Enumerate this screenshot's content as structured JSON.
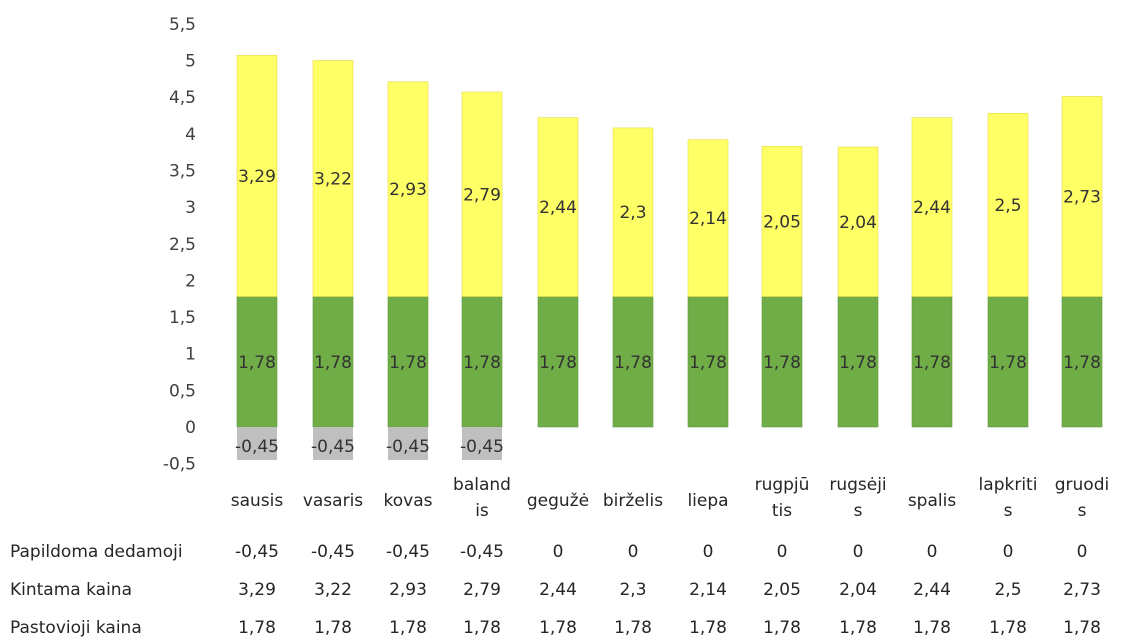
{
  "chart_data": {
    "type": "bar",
    "stacked": true,
    "categories": [
      [
        "sausis"
      ],
      [
        "vasaris"
      ],
      [
        "kovas"
      ],
      [
        "baland",
        "is"
      ],
      [
        "gegužė"
      ],
      [
        "birželis"
      ],
      [
        "liepa"
      ],
      [
        "rugpjū",
        "tis"
      ],
      [
        "rugsėji",
        "s"
      ],
      [
        "spalis"
      ],
      [
        "lapkriti",
        "s"
      ],
      [
        "gruodi",
        "s"
      ]
    ],
    "series": [
      {
        "name": "Pastovioji kaina",
        "color": "#70ad47",
        "values": [
          1.78,
          1.78,
          1.78,
          1.78,
          1.78,
          1.78,
          1.78,
          1.78,
          1.78,
          1.78,
          1.78,
          1.78
        ],
        "labels": [
          "1,78",
          "1,78",
          "1,78",
          "1,78",
          "1,78",
          "1,78",
          "1,78",
          "1,78",
          "1,78",
          "1,78",
          "1,78",
          "1,78"
        ]
      },
      {
        "name": "Kintama kaina",
        "color": "#ffff66",
        "values": [
          3.29,
          3.22,
          2.93,
          2.79,
          2.44,
          2.3,
          2.14,
          2.05,
          2.04,
          2.44,
          2.5,
          2.73
        ],
        "labels": [
          "3,29",
          "3,22",
          "2,93",
          "2,79",
          "2,44",
          "2,3",
          "2,14",
          "2,05",
          "2,04",
          "2,44",
          "2,5",
          "2,73"
        ]
      },
      {
        "name": "Papildoma dedamoji",
        "color": "#bfbfbf",
        "values": [
          -0.45,
          -0.45,
          -0.45,
          -0.45,
          0,
          0,
          0,
          0,
          0,
          0,
          0,
          0
        ],
        "labels": [
          "-0,45",
          "-0,45",
          "-0,45",
          "-0,45",
          "0",
          "0",
          "0",
          "0",
          "0",
          "0",
          "0",
          "0"
        ]
      }
    ],
    "y_ticks": [
      "-0,5",
      "0",
      "0,5",
      "1",
      "1,5",
      "2",
      "2,5",
      "3",
      "3,5",
      "4",
      "4,5",
      "5",
      "5,5"
    ],
    "ylim": [
      -0.5,
      5.5
    ],
    "grid": false,
    "data_table": {
      "rows": [
        {
          "name": "Papildoma dedamoji",
          "cells": [
            "-0,45",
            "-0,45",
            "-0,45",
            "-0,45",
            "0",
            "0",
            "0",
            "0",
            "0",
            "0",
            "0",
            "0"
          ]
        },
        {
          "name": "Kintama kaina",
          "cells": [
            "3,29",
            "3,22",
            "2,93",
            "2,79",
            "2,44",
            "2,3",
            "2,14",
            "2,05",
            "2,04",
            "2,44",
            "2,5",
            "2,73"
          ]
        },
        {
          "name": "Pastovioji kaina",
          "cells": [
            "1,78",
            "1,78",
            "1,78",
            "1,78",
            "1,78",
            "1,78",
            "1,78",
            "1,78",
            "1,78",
            "1,78",
            "1,78",
            "1,78"
          ]
        }
      ]
    }
  }
}
